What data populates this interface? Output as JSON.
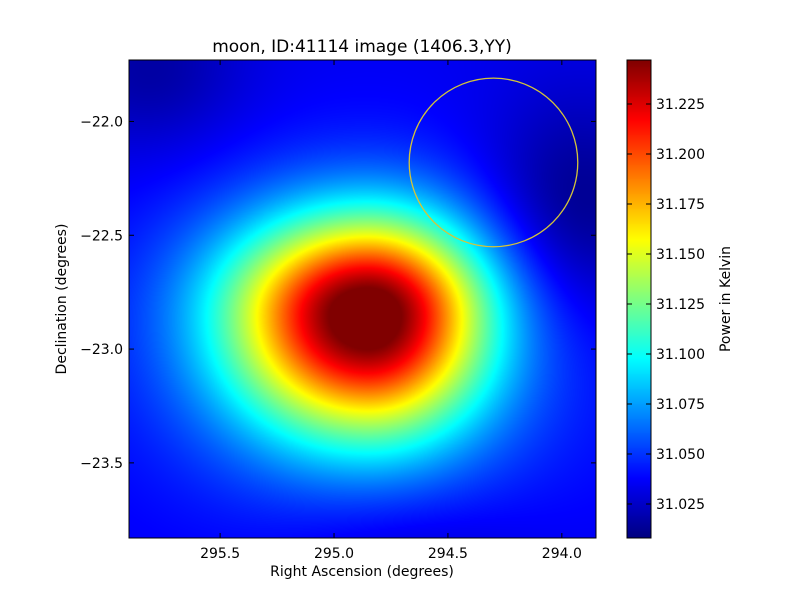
{
  "chart_data": {
    "type": "heatmap",
    "title": "moon, ID:41114 image (1406.3,YY)",
    "xlabel": "Right Ascension (degrees)",
    "ylabel": "Declination (degrees)",
    "colorbar_label": "Power in Kelvin",
    "colormap": "jet",
    "x_inverted": true,
    "xlim": [
      295.9,
      293.85
    ],
    "ylim": [
      -23.83,
      -21.73
    ],
    "x_ticks": [
      295.5,
      295.0,
      294.5,
      294.0
    ],
    "x_tick_labels": [
      "295.5",
      "295.0",
      "294.5",
      "294.0"
    ],
    "y_ticks": [
      -22.0,
      -22.5,
      -23.0,
      -23.5
    ],
    "y_tick_labels": [
      "−22.0",
      "−22.5",
      "−23.0",
      "−23.5"
    ],
    "colorbar_range": [
      31.008,
      31.247
    ],
    "colorbar_ticks": [
      31.025,
      31.05,
      31.075,
      31.1,
      31.125,
      31.15,
      31.175,
      31.2,
      31.225
    ],
    "colorbar_tick_labels": [
      "31.025",
      "31.050",
      "31.075",
      "31.100",
      "31.125",
      "31.150",
      "31.175",
      "31.200",
      "31.225"
    ],
    "peak": {
      "ra": 294.85,
      "dec": -22.85,
      "value": 31.245
    },
    "minimum": {
      "ra": 293.95,
      "dec": -22.4,
      "value": 31.01
    },
    "annotations": [
      {
        "type": "circle",
        "ra": 294.3,
        "dec": -22.18,
        "radius_deg": 0.37,
        "color": "#d4c43a"
      }
    ]
  }
}
